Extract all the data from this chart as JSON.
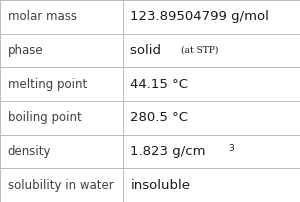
{
  "rows": [
    {
      "label": "molar mass",
      "value": "123.89504799 g/mol",
      "type": "simple"
    },
    {
      "label": "phase",
      "value": "solid",
      "type": "phase",
      "sub": "(at STP)"
    },
    {
      "label": "melting point",
      "value": "44.15 °C",
      "type": "simple"
    },
    {
      "label": "boiling point",
      "value": "280.5 °C",
      "type": "simple"
    },
    {
      "label": "density",
      "value": "1.823 g/cm",
      "type": "super",
      "super": "3"
    },
    {
      "label": "solubility in water",
      "value": "insoluble",
      "type": "simple"
    }
  ],
  "col_split": 0.41,
  "bg_color": "#ffffff",
  "border_color": "#bbbbbb",
  "label_color": "#404040",
  "value_color": "#1a1a1a",
  "label_fontsize": 8.5,
  "value_fontsize": 9.5,
  "sub_fontsize": 6.5,
  "super_fontsize": 6.5
}
